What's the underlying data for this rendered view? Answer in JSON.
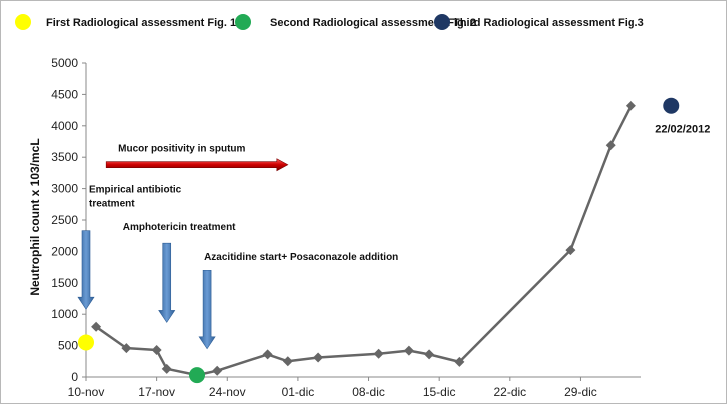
{
  "chart_data": {
    "type": "line",
    "title": "",
    "ylabel": "Neutrophil count x 103/mcL",
    "xlabel": "",
    "ylim": [
      0,
      5000
    ],
    "yticks": [
      0,
      500,
      1000,
      1500,
      2000,
      2500,
      3000,
      3500,
      4000,
      4500,
      5000
    ],
    "xlim": [
      "2011-11-10",
      "2012-01-04"
    ],
    "xticks": [
      "2011-11-10",
      "2011-11-17",
      "2011-11-24",
      "2011-12-01",
      "2011-12-08",
      "2011-12-15",
      "2011-12-22",
      "2011-12-29"
    ],
    "xtick_labels": [
      "10-nov",
      "17-nov",
      "24-nov",
      "01-dic",
      "08-dic",
      "15-dic",
      "22-dic",
      "29-dic"
    ],
    "grid": false,
    "legend_position": "top",
    "series": [
      {
        "color": "#666666",
        "marker": "diamond",
        "points": [
          {
            "x": "2011-11-11",
            "y": 800
          },
          {
            "x": "2011-11-14",
            "y": 460
          },
          {
            "x": "2011-11-17",
            "y": 430
          },
          {
            "x": "2011-11-18",
            "y": 130
          },
          {
            "x": "2011-11-21",
            "y": 30
          },
          {
            "x": "2011-11-23",
            "y": 100
          },
          {
            "x": "2011-11-28",
            "y": 360
          },
          {
            "x": "2011-11-30",
            "y": 250
          },
          {
            "x": "2011-12-03",
            "y": 310
          },
          {
            "x": "2011-12-09",
            "y": 370
          },
          {
            "x": "2011-12-12",
            "y": 420
          },
          {
            "x": "2011-12-14",
            "y": 360
          },
          {
            "x": "2011-12-17",
            "y": 240
          },
          {
            "x": "2011-12-28",
            "y": 2020
          },
          {
            "x": "2012-01-01",
            "y": 3690
          },
          {
            "x": "2012-01-03",
            "y": 4320
          }
        ]
      }
    ],
    "assessments": [
      {
        "label": "First Radiological assessment Fig. 1",
        "color": "#ffff00",
        "x": "2011-11-10",
        "y": 550
      },
      {
        "label": "Second Radiological assessment Fig. 2",
        "color": "#22aa55",
        "x": "2011-11-21",
        "y": 30
      },
      {
        "label": "Third Radiological assessment Fig.3",
        "color": "#1f3864",
        "x": "2012-01-07",
        "y": 4320,
        "date_label": "22/02/2012"
      }
    ],
    "annotations": [
      {
        "id": "mucor",
        "text": "Mucor positivity in sputum",
        "arrow": "right",
        "color": "#cc0000",
        "x_start": "2011-11-12",
        "x_end": "2011-11-30",
        "y": 3380
      },
      {
        "id": "antibiotic",
        "lines": [
          "Empirical antibiotic",
          "treatment"
        ],
        "arrow": "down",
        "color": "#4f81bd",
        "x": "2011-11-10",
        "y_top": 2330,
        "y_bottom": 1080
      },
      {
        "id": "amphotericin",
        "text": "Amphotericin  treatment",
        "arrow": "down",
        "color": "#4f81bd",
        "x": "2011-11-18",
        "y_top": 2130,
        "y_bottom": 870
      },
      {
        "id": "azacitidine",
        "text": "Azacitidine  start+ Posaconazole addition",
        "arrow": "down",
        "color": "#4f81bd",
        "x": "2011-11-22",
        "y_top": 1700,
        "y_bottom": 450
      }
    ]
  }
}
